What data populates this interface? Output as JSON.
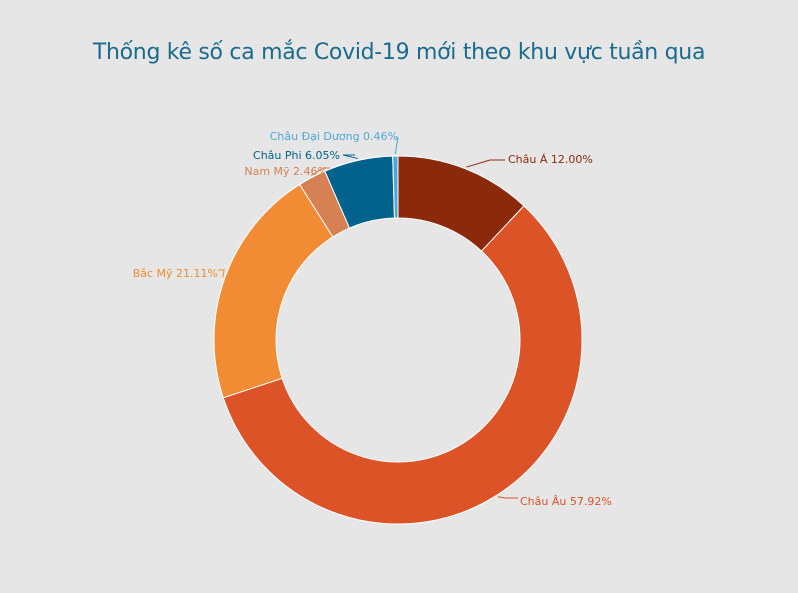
{
  "chart_data": {
    "type": "pie",
    "variant": "donut",
    "title": "Thống kê số ca mắc Covid-19 mới theo khu vực tuần qua",
    "start_angle_deg": 0,
    "direction": "clockwise",
    "legend": "none",
    "slices": [
      {
        "name": "Châu Á",
        "value": 12.0,
        "label": "Châu Á 12.00%",
        "color": "#8b2a0b"
      },
      {
        "name": "Châu Âu",
        "value": 57.92,
        "label": "Châu Âu 57.92%",
        "color": "#db5327"
      },
      {
        "name": "Bắc Mỹ",
        "value": 21.11,
        "label": "Bắc Mỹ 21.11%",
        "color": "#f18b34"
      },
      {
        "name": "Nam Mỹ",
        "value": 2.46,
        "label": "Nam Mỹ 2.46%",
        "color": "#d58153"
      },
      {
        "name": "Châu Phi",
        "value": 6.05,
        "label": "Châu Phi  6.05%",
        "color": "#02628e"
      },
      {
        "name": "Châu Đại Dương",
        "value": 0.46,
        "label": "Châu Đại Dương 0.46%",
        "color": "#4fa7d8"
      }
    ]
  },
  "colors": {
    "background": "#e6e6e6",
    "title": "#1a6b8f"
  }
}
